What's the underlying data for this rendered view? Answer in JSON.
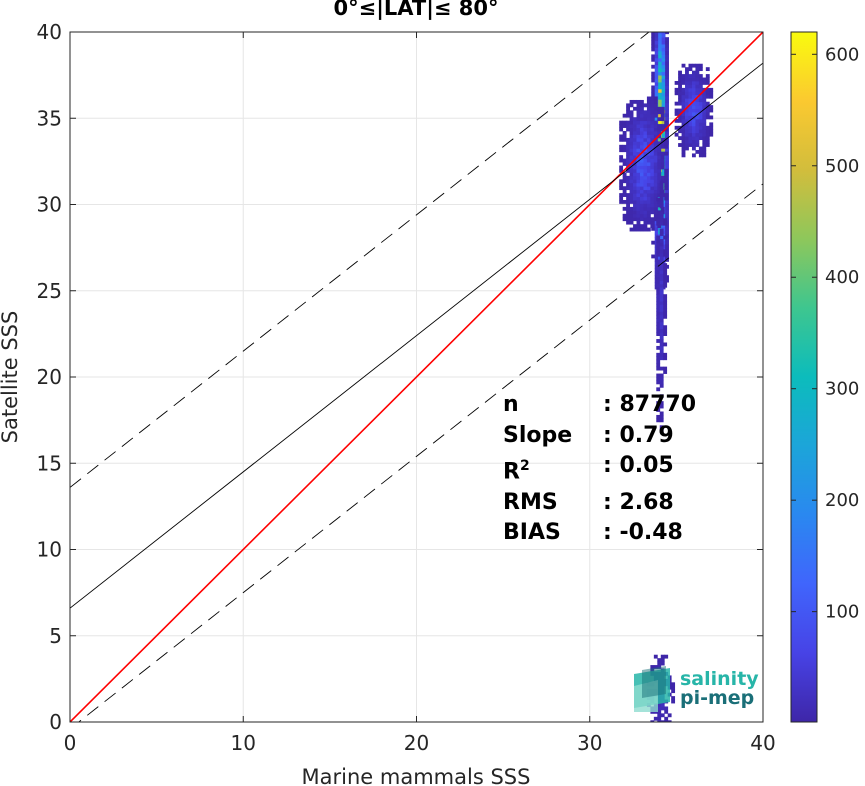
{
  "chart_data": {
    "type": "heatmap",
    "title": "0°≤|LAT|≤ 80°",
    "xlabel": "Marine mammals SSS",
    "ylabel": "Satellite SSS",
    "xlim": [
      0,
      40
    ],
    "ylim": [
      0,
      40
    ],
    "xticks": [
      "0",
      "10",
      "20",
      "30",
      "40"
    ],
    "yticks": [
      "0",
      "5",
      "10",
      "15",
      "20",
      "25",
      "30",
      "35",
      "40"
    ],
    "grid": true,
    "colorbar": {
      "range": [
        1,
        620
      ],
      "ticks": [
        "100",
        "200",
        "300",
        "400",
        "500",
        "600"
      ],
      "tick_values": [
        100,
        200,
        300,
        400,
        500,
        600
      ],
      "colormap": "parula"
    },
    "lines": [
      {
        "kind": "identity",
        "color": "#ff0000",
        "slope": 1.0,
        "intercept": 0.0
      },
      {
        "kind": "regression",
        "color": "#000000",
        "slope": 0.79,
        "intercept": 6.6
      },
      {
        "kind": "upper-bound",
        "color": "#000000",
        "dash": true,
        "slope": 0.79,
        "intercept": 13.6
      },
      {
        "kind": "lower-bound",
        "color": "#000000",
        "dash": true,
        "slope": 0.79,
        "intercept": -0.4
      }
    ],
    "density_clusters": [
      {
        "x": 34.0,
        "y": 33.5,
        "sx": 0.15,
        "sy": 3.5,
        "peak": 620
      },
      {
        "x": 33.0,
        "y": 32.3,
        "sx": 0.5,
        "sy": 1.6,
        "peak": 90
      },
      {
        "x": 35.9,
        "y": 35.4,
        "sx": 0.4,
        "sy": 1.1,
        "peak": 80
      },
      {
        "x": 34.0,
        "y": 24.0,
        "sx": 0.12,
        "sy": 3.0,
        "peak": 30
      },
      {
        "x": 34.0,
        "y": 1.5,
        "sx": 0.3,
        "sy": 1.0,
        "peak": 20
      }
    ],
    "stats": [
      {
        "key": "n",
        "value": ": 87770"
      },
      {
        "key": "Slope",
        "value": ": 0.79"
      },
      {
        "key": "R",
        "sup": "2",
        "value": ": 0.05"
      },
      {
        "key": "RMS",
        "value": ": 2.68"
      },
      {
        "key": "BIAS",
        "value": ": -0.48"
      }
    ]
  },
  "logo": {
    "line1": "salinity",
    "line2": "pi-mep"
  }
}
